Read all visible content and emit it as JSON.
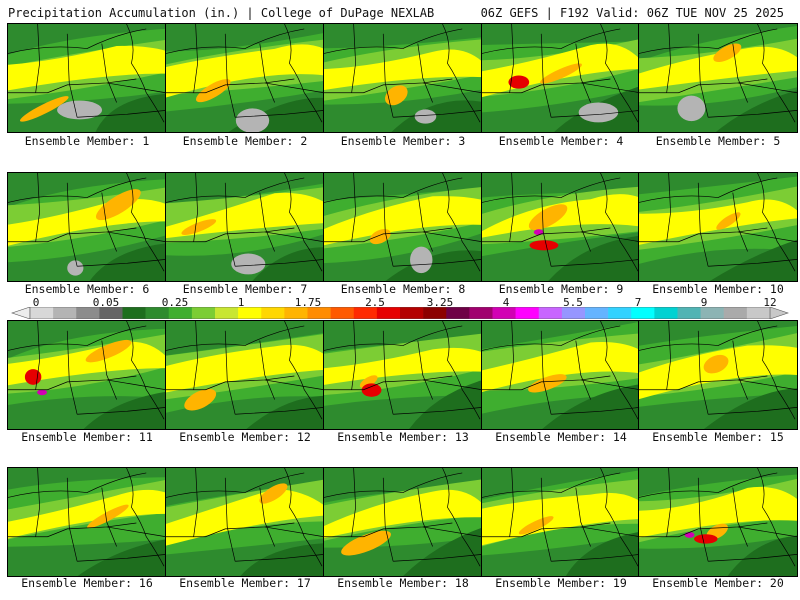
{
  "header": {
    "title": "Precipitation Accumulation (in.) | College of DuPage NEXLAB",
    "run_info": "06Z GEFS | F192 Valid: 06Z TUE NOV 25 2025"
  },
  "colorbar": {
    "labels": [
      "0",
      "0.05",
      "0.25",
      "1",
      "1.75",
      "2.5",
      "3.25",
      "4",
      "5.5",
      "7",
      "9",
      "12"
    ],
    "colors": [
      "#d8d8d8",
      "#b4b4b4",
      "#8c8c8c",
      "#646464",
      "#1e6e1e",
      "#2e8b2e",
      "#3fae2f",
      "#7ccd34",
      "#c8e632",
      "#ffff00",
      "#ffd700",
      "#ffb400",
      "#ff8c00",
      "#ff5a00",
      "#ff2a00",
      "#e60000",
      "#b40000",
      "#8c0000",
      "#6e0046",
      "#a0006e",
      "#d200b4",
      "#ff00ff",
      "#c864ff",
      "#9696ff",
      "#64b4ff",
      "#32d2ff",
      "#00ffff",
      "#00d2d2",
      "#50b4b4",
      "#8cb4b4",
      "#aaaaaa",
      "#c8c8c8"
    ]
  },
  "members": [
    {
      "label": "Ensemble Member: 1"
    },
    {
      "label": "Ensemble Member: 2"
    },
    {
      "label": "Ensemble Member: 3"
    },
    {
      "label": "Ensemble Member: 4"
    },
    {
      "label": "Ensemble Member: 5"
    },
    {
      "label": "Ensemble Member: 6"
    },
    {
      "label": "Ensemble Member: 7"
    },
    {
      "label": "Ensemble Member: 8"
    },
    {
      "label": "Ensemble Member: 9"
    },
    {
      "label": "Ensemble Member: 10"
    },
    {
      "label": "Ensemble Member: 11"
    },
    {
      "label": "Ensemble Member: 12"
    },
    {
      "label": "Ensemble Member: 13"
    },
    {
      "label": "Ensemble Member: 14"
    },
    {
      "label": "Ensemble Member: 15"
    },
    {
      "label": "Ensemble Member: 16"
    },
    {
      "label": "Ensemble Member: 17"
    },
    {
      "label": "Ensemble Member: 18"
    },
    {
      "label": "Ensemble Member: 19"
    },
    {
      "label": "Ensemble Member: 20"
    }
  ]
}
